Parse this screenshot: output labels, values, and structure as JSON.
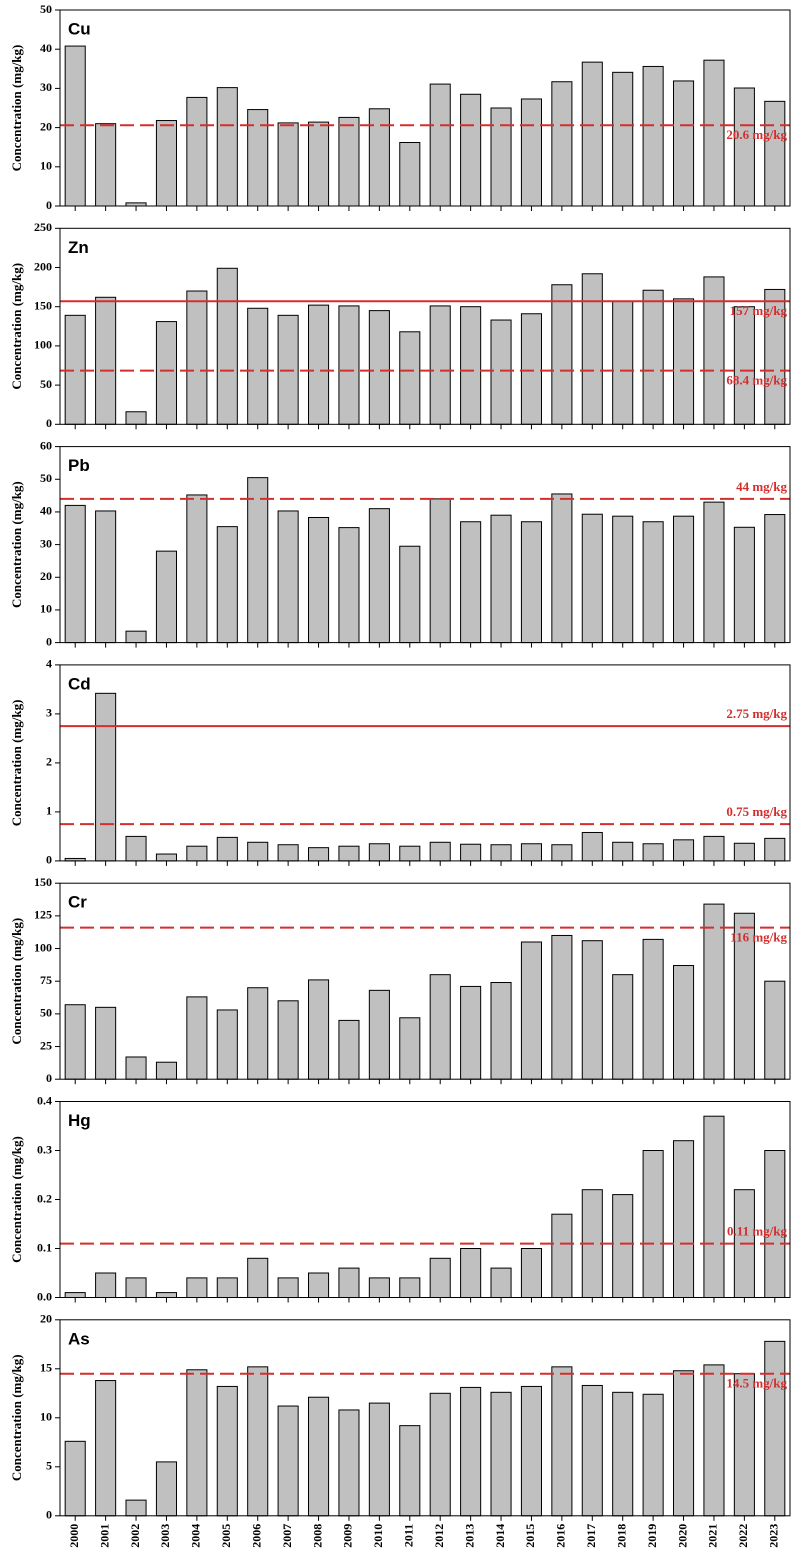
{
  "chart_data": [
    {
      "type": "bar",
      "title": "Cu",
      "y_label": "Concentration (mg/kg)",
      "color": "#c0c0c0",
      "values": [
        40.8,
        21,
        0.8,
        21.8,
        27.7,
        30.2,
        24.6,
        21.2,
        21.4,
        22.6,
        24.8,
        16.2,
        31.1,
        28.5,
        25,
        27.3,
        31.7,
        36.7,
        34.1,
        35.6,
        31.9,
        37.2,
        30.1,
        26.7
      ],
      "ylim": [
        0,
        50
      ],
      "yticks": [
        0,
        10,
        20,
        30,
        40,
        50
      ],
      "reference_lines": [
        {
          "value": 20.6,
          "label": "20.6 mg/kg",
          "style": "dashed",
          "color": "#d32f2f",
          "label_position": "below"
        }
      ]
    },
    {
      "type": "bar",
      "title": "Zn",
      "y_label": "Concentration (mg/kg)",
      "color": "#c0c0c0",
      "values": [
        139,
        162,
        16,
        131,
        170,
        199,
        148,
        139,
        152,
        151,
        145,
        118,
        151,
        150,
        133,
        141,
        178,
        192,
        157,
        171,
        160,
        188,
        150,
        172
      ],
      "ylim": [
        0,
        250
      ],
      "yticks": [
        0,
        50,
        100,
        150,
        200,
        250
      ],
      "reference_lines": [
        {
          "value": 157,
          "label": "157 mg/kg",
          "style": "solid",
          "color": "#d32f2f",
          "label_position": "below"
        },
        {
          "value": 68.4,
          "label": "68.4 mg/kg",
          "style": "dashed",
          "color": "#d32f2f",
          "label_position": "below"
        }
      ]
    },
    {
      "type": "bar",
      "title": "Pb",
      "y_label": "Concentration (mg/kg)",
      "color": "#c0c0c0",
      "values": [
        42,
        40.3,
        3.5,
        28,
        45.2,
        35.5,
        50.5,
        40.3,
        38.3,
        35.2,
        41,
        29.5,
        44,
        37,
        39,
        37,
        45.5,
        39.3,
        38.7,
        37,
        38.7,
        43,
        35.3,
        39.2
      ],
      "ylim": [
        0,
        60
      ],
      "yticks": [
        0,
        10,
        20,
        30,
        40,
        50,
        60
      ],
      "reference_lines": [
        {
          "value": 44,
          "label": "44 mg/kg",
          "style": "dashed",
          "color": "#d32f2f",
          "label_position": "above"
        }
      ]
    },
    {
      "type": "bar",
      "title": "Cd",
      "y_label": "Concentration (mg/kg)",
      "color": "#c0c0c0",
      "values": [
        0.05,
        3.42,
        0.5,
        0.14,
        0.3,
        0.48,
        0.38,
        0.33,
        0.27,
        0.3,
        0.35,
        0.3,
        0.38,
        0.34,
        0.33,
        0.35,
        0.33,
        0.58,
        0.38,
        0.35,
        0.43,
        0.5,
        0.36,
        0.46
      ],
      "ylim": [
        0,
        4
      ],
      "yticks": [
        0,
        1,
        2,
        3,
        4
      ],
      "reference_lines": [
        {
          "value": 2.75,
          "label": "2.75 mg/kg",
          "style": "solid",
          "color": "#d32f2f",
          "label_position": "above"
        },
        {
          "value": 0.75,
          "label": "0.75 mg/kg",
          "style": "dashed",
          "color": "#d32f2f",
          "label_position": "above"
        }
      ]
    },
    {
      "type": "bar",
      "title": "Cr",
      "y_label": "Concentration (mg/kg)",
      "color": "#c0c0c0",
      "values": [
        57,
        55,
        17,
        13,
        63,
        53,
        70,
        60,
        76,
        45,
        68,
        47,
        80,
        71,
        74,
        105,
        110,
        106,
        80,
        107,
        87,
        134,
        127,
        75
      ],
      "ylim": [
        0,
        150
      ],
      "yticks": [
        0,
        25,
        50,
        75,
        100,
        125,
        150
      ],
      "reference_lines": [
        {
          "value": 116,
          "label": "116 mg/kg",
          "style": "dashed",
          "color": "#d32f2f",
          "label_position": "below"
        }
      ]
    },
    {
      "type": "bar",
      "title": "Hg",
      "y_label": "Concentration (mg/kg)",
      "color": "#c0c0c0",
      "values": [
        0.01,
        0.05,
        0.04,
        0.01,
        0.04,
        0.04,
        0.08,
        0.04,
        0.05,
        0.06,
        0.04,
        0.04,
        0.08,
        0.1,
        0.06,
        0.1,
        0.17,
        0.22,
        0.21,
        0.3,
        0.32,
        0.37,
        0.22,
        0.3
      ],
      "ylim": [
        0,
        0.4
      ],
      "yticks": [
        {
          "value": 0,
          "label": "0.0"
        },
        0.1,
        0.2,
        0.3,
        0.4
      ],
      "reference_lines": [
        {
          "value": 0.11,
          "label": "0.11 mg/kg",
          "style": "dashed",
          "color": "#d32f2f",
          "label_position": "above"
        }
      ]
    },
    {
      "type": "bar",
      "title": "As",
      "y_label": "Concentration (mg/kg)",
      "color": "#c0c0c0",
      "categories": [
        "2000",
        "2001",
        "2002",
        "2003",
        "2004",
        "2005",
        "2006",
        "2007",
        "2008",
        "2009",
        "2010",
        "2011",
        "2012",
        "2013",
        "2014",
        "2015",
        "2016",
        "2017",
        "2018",
        "2019",
        "2020",
        "2021",
        "2022",
        "2023"
      ],
      "values": [
        7.6,
        13.8,
        1.6,
        5.5,
        14.9,
        13.2,
        15.2,
        11.2,
        12.1,
        10.8,
        11.5,
        9.2,
        12.5,
        13.1,
        12.6,
        13.2,
        15.2,
        13.3,
        12.6,
        12.4,
        14.8,
        15.4,
        14.5,
        17.8
      ],
      "ylim": [
        0,
        20
      ],
      "yticks": [
        0,
        5,
        10,
        15,
        20
      ],
      "reference_lines": [
        {
          "value": 14.5,
          "label": "14.5 mg/kg",
          "style": "dashed",
          "color": "#d32f2f",
          "label_position": "below"
        }
      ]
    }
  ]
}
